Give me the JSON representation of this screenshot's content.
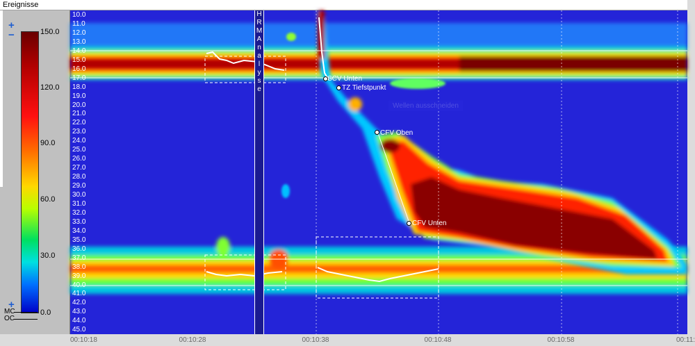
{
  "window": {
    "title": "Ereignisse"
  },
  "colorbar": {
    "max": "150.0",
    "ticks": [
      "150.0",
      "120.0",
      "90.0",
      "60.0",
      "30.0",
      "0.0"
    ]
  },
  "controls": {
    "plus": "+",
    "minus": "−",
    "mc": "MC",
    "oc": "OC"
  },
  "hrm": {
    "letters": [
      "H",
      "R",
      "M",
      " ",
      "A",
      "n",
      "a",
      "l",
      "y",
      "s",
      "e"
    ]
  },
  "yaxis": {
    "labels": [
      "10.0",
      "11.0",
      "12.0",
      "13.0",
      "14.0",
      "15.0",
      "16.0",
      "17.0",
      "18.0",
      "19.0",
      "20.0",
      "21.0",
      "22.0",
      "23.0",
      "24.0",
      "25.0",
      "26.0",
      "27.0",
      "28.0",
      "29.0",
      "30.0",
      "31.0",
      "32.0",
      "33.0",
      "34.0",
      "35.0",
      "36.0",
      "37.0",
      "38.0",
      "39.0",
      "40.0",
      "41.0",
      "42.0",
      "43.0",
      "44.0",
      "45.0"
    ]
  },
  "xaxis": {
    "labels": [
      "00:10:18",
      "00:10:28",
      "00:10:38",
      "00:10:48",
      "00:10:58",
      "00:11:"
    ]
  },
  "markers": [
    {
      "label": "SCV Unten"
    },
    {
      "label": "TZ Tiefstpunkt"
    },
    {
      "label": "CFV Oben"
    },
    {
      "label": "CFV Unten"
    }
  ],
  "ghost_text": "Wellen ausschneiden"
}
